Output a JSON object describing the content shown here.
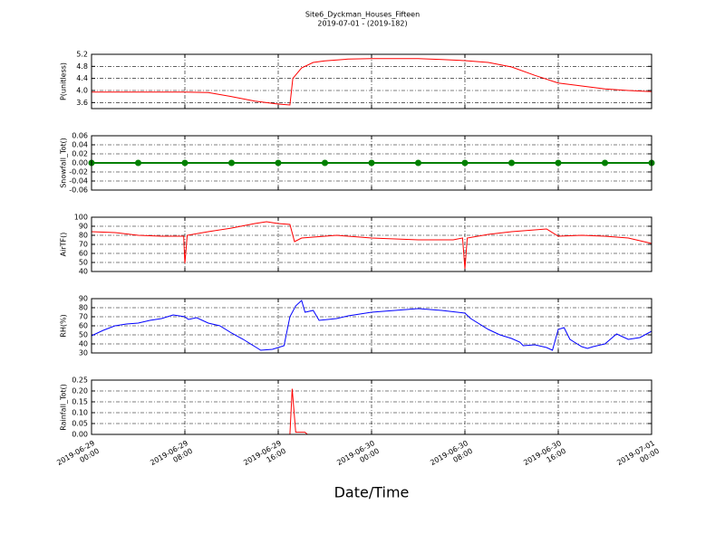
{
  "title": "Site6_Dyckman_Houses_Fifteen",
  "subtitle": "2019-07-01 - (2019-182)",
  "xlabel": "Date/Time",
  "xlim": [
    "2019-06-29 00:00",
    "2019-07-01 00:00"
  ],
  "xticks": [
    {
      "value": "2019-06-29 00:00",
      "label": "2019-06-29\n00:00"
    },
    {
      "value": "2019-06-29 08:00",
      "label": "2019-06-29\n08:00"
    },
    {
      "value": "2019-06-29 16:00",
      "label": "2019-06-29\n16:00"
    },
    {
      "value": "2019-06-30 00:00",
      "label": "2019-06-30\n00:00"
    },
    {
      "value": "2019-06-30 08:00",
      "label": "2019-06-30\n08:00"
    },
    {
      "value": "2019-06-30 16:00",
      "label": "2019-06-30\n16:00"
    },
    {
      "value": "2019-07-01 00:00",
      "label": "2019-07-01\n00:00"
    }
  ],
  "chart_data": [
    {
      "type": "line",
      "ylabel": "P(unitless)",
      "color": "#ff0000",
      "grid": true,
      "x": [
        "2019-06-29 00:00",
        "2019-06-29 04:00",
        "2019-06-29 08:00",
        "2019-06-29 10:00",
        "2019-06-29 12:00",
        "2019-06-29 14:00",
        "2019-06-29 16:00",
        "2019-06-29 17:00",
        "2019-06-29 17:15",
        "2019-06-29 18:00",
        "2019-06-29 19:00",
        "2019-06-29 20:00",
        "2019-06-29 22:00",
        "2019-06-30 00:00",
        "2019-06-30 04:00",
        "2019-06-30 06:00",
        "2019-06-30 08:00",
        "2019-06-30 10:00",
        "2019-06-30 12:00",
        "2019-06-30 14:00",
        "2019-06-30 16:00",
        "2019-06-30 18:00",
        "2019-06-30 20:00",
        "2019-06-30 22:00",
        "2019-07-01 00:00"
      ],
      "values": [
        3.95,
        3.95,
        3.95,
        3.93,
        3.8,
        3.65,
        3.55,
        3.52,
        4.4,
        4.75,
        4.93,
        4.98,
        5.04,
        5.06,
        5.06,
        5.03,
        4.99,
        4.93,
        4.78,
        4.5,
        4.25,
        4.15,
        4.05,
        4.0,
        3.96
      ],
      "ylim": [
        3.4,
        5.2
      ],
      "yticks": [
        3.6,
        {
          "value": 4,
          "label": "4.0"
        },
        4.4,
        4.8,
        5.2
      ]
    },
    {
      "type": "line",
      "ylabel": "Snowfall_Tot()",
      "color": "#008000",
      "grid": true,
      "marker": "o",
      "x": [
        "2019-06-29 00:00",
        "2019-06-29 04:00",
        "2019-06-29 08:00",
        "2019-06-29 12:00",
        "2019-06-29 16:00",
        "2019-06-29 20:00",
        "2019-06-30 00:00",
        "2019-06-30 04:00",
        "2019-06-30 08:00",
        "2019-06-30 12:00",
        "2019-06-30 16:00",
        "2019-06-30 20:00",
        "2019-07-01 00:00"
      ],
      "values": [
        0,
        0,
        0,
        0,
        0,
        0,
        0,
        0,
        0,
        0,
        0,
        0,
        0
      ],
      "ylim": [
        -0.06,
        0.06
      ],
      "yticks": [
        -0.06,
        -0.04,
        -0.02,
        {
          "value": 0,
          "label": "0.00"
        },
        0.02,
        0.04,
        0.06
      ]
    },
    {
      "type": "line",
      "ylabel": "AirTF()",
      "color": "#ff0000",
      "grid": true,
      "x": [
        "2019-06-29 00:00",
        "2019-06-29 02:00",
        "2019-06-29 04:00",
        "2019-06-29 06:00",
        "2019-06-29 07:54",
        "2019-06-29 08:00",
        "2019-06-29 08:12",
        "2019-06-29 10:00",
        "2019-06-29 12:00",
        "2019-06-29 14:00",
        "2019-06-29 15:00",
        "2019-06-29 16:00",
        "2019-06-29 17:00",
        "2019-06-29 17:24",
        "2019-06-29 18:00",
        "2019-06-29 19:00",
        "2019-06-29 21:00",
        "2019-06-30 00:00",
        "2019-06-30 04:00",
        "2019-06-30 07:00",
        "2019-06-30 07:48",
        "2019-06-30 08:00",
        "2019-06-30 08:12",
        "2019-06-30 10:00",
        "2019-06-30 12:00",
        "2019-06-30 14:00",
        "2019-06-30 15:00",
        "2019-06-30 16:00",
        "2019-06-30 18:00",
        "2019-06-30 20:00",
        "2019-06-30 22:00",
        "2019-07-01 00:00"
      ],
      "values": [
        84,
        83,
        80,
        79,
        79,
        49,
        80,
        84,
        88,
        93,
        95,
        93,
        92,
        73,
        77,
        78,
        80,
        77,
        75,
        75,
        77,
        43,
        77,
        81,
        84,
        86,
        87,
        79,
        80,
        79,
        77,
        71
      ],
      "ylim": [
        40,
        100
      ],
      "yticks": [
        40,
        50,
        60,
        70,
        80,
        90,
        100
      ]
    },
    {
      "type": "line",
      "ylabel": "RH(%)",
      "color": "#0000ff",
      "grid": true,
      "x": [
        "2019-06-29 00:00",
        "2019-06-29 01:00",
        "2019-06-29 02:00",
        "2019-06-29 03:00",
        "2019-06-29 04:00",
        "2019-06-29 05:00",
        "2019-06-29 06:00",
        "2019-06-29 07:00",
        "2019-06-29 08:00",
        "2019-06-29 08:18",
        "2019-06-29 09:00",
        "2019-06-29 10:00",
        "2019-06-29 11:00",
        "2019-06-29 12:00",
        "2019-06-29 13:00",
        "2019-06-29 14:00",
        "2019-06-29 14:30",
        "2019-06-29 15:30",
        "2019-06-29 16:30",
        "2019-06-29 17:00",
        "2019-06-29 17:30",
        "2019-06-29 18:00",
        "2019-06-29 18:18",
        "2019-06-29 19:00",
        "2019-06-29 19:30",
        "2019-06-29 21:00",
        "2019-06-29 22:00",
        "2019-06-30 00:00",
        "2019-06-30 02:00",
        "2019-06-30 04:00",
        "2019-06-30 06:00",
        "2019-06-30 08:00",
        "2019-06-30 08:30",
        "2019-06-30 10:00",
        "2019-06-30 11:00",
        "2019-06-30 12:00",
        "2019-06-30 12:42",
        "2019-06-30 13:00",
        "2019-06-30 14:00",
        "2019-06-30 15:00",
        "2019-06-30 15:30",
        "2019-06-30 16:00",
        "2019-06-30 16:30",
        "2019-06-30 17:00",
        "2019-06-30 18:00",
        "2019-06-30 18:30",
        "2019-06-30 19:00",
        "2019-06-30 20:00",
        "2019-06-30 21:00",
        "2019-06-30 21:30",
        "2019-06-30 22:00",
        "2019-06-30 23:00",
        "2019-07-01 00:00"
      ],
      "values": [
        49,
        55,
        60,
        62,
        63,
        66,
        68,
        72,
        70,
        67,
        69,
        63,
        60,
        52,
        45,
        37,
        33,
        34,
        38,
        70,
        82,
        88,
        75,
        77,
        66,
        68,
        71,
        75,
        77,
        79,
        77,
        74,
        68,
        56,
        50,
        46,
        42,
        38,
        39,
        36,
        33,
        56,
        58,
        45,
        37,
        35,
        37,
        40,
        51,
        48,
        45,
        47,
        54
      ],
      "ylim": [
        30,
        90
      ],
      "yticks": [
        30,
        40,
        50,
        60,
        70,
        80,
        90
      ]
    },
    {
      "type": "line",
      "ylabel": "Rainfall_Tot()",
      "color": "#ff0000",
      "grid": true,
      "x": [
        "2019-06-29 00:00",
        "2019-06-29 17:00",
        "2019-06-29 17:12",
        "2019-06-29 17:30",
        "2019-06-29 18:18",
        "2019-06-29 18:30",
        "2019-07-01 00:00"
      ],
      "values": [
        0,
        0,
        0.21,
        0.01,
        0.01,
        0,
        0
      ],
      "ylim": [
        0,
        0.25
      ],
      "yticks": [
        {
          "value": 0,
          "label": "0.00"
        },
        0.05,
        {
          "value": 0.1,
          "label": "0.10"
        },
        0.15,
        {
          "value": 0.2,
          "label": "0.20"
        },
        0.25
      ]
    }
  ]
}
